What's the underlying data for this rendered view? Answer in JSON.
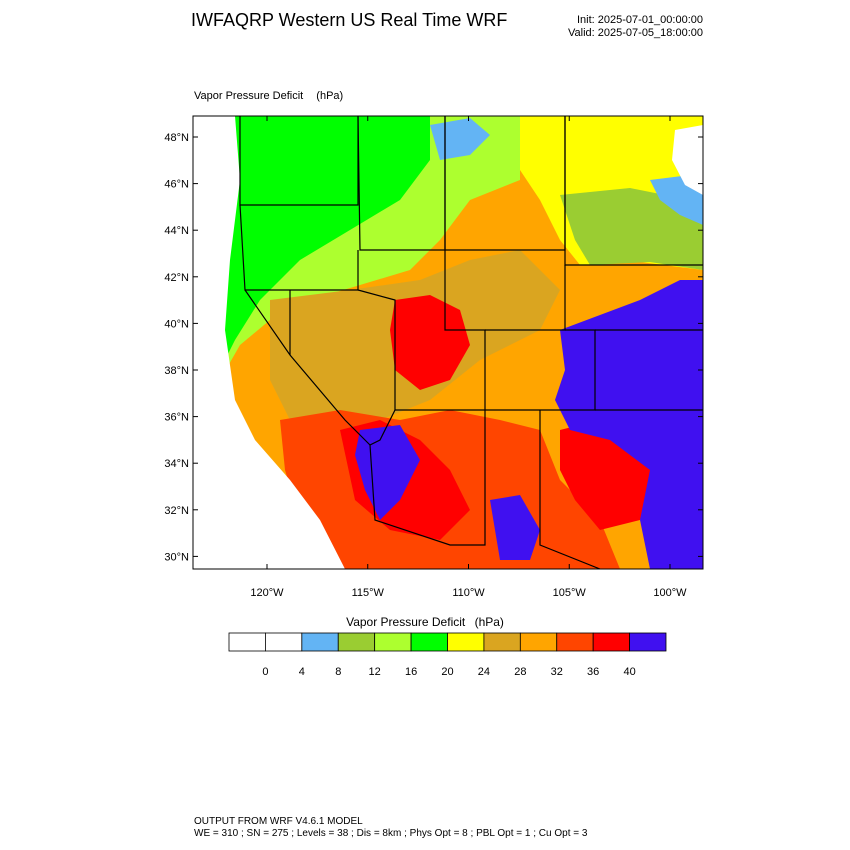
{
  "header": {
    "title": "IWFAQRP Western US Real Time WRF",
    "init": "Init: 2025-07-01_00:00:00",
    "valid": "Valid: 2025-07-05_18:00:00"
  },
  "field": {
    "name": "Vapor Pressure Deficit",
    "units": "(hPa)"
  },
  "axes": {
    "lat_labels": [
      "48°N",
      "46°N",
      "44°N",
      "42°N",
      "40°N",
      "38°N",
      "36°N",
      "34°N",
      "32°N",
      "30°N"
    ],
    "lat_values": [
      48,
      46,
      44,
      42,
      40,
      38,
      36,
      34,
      32,
      30
    ],
    "lon_labels": [
      "120°W",
      "115°W",
      "110°W",
      "105°W",
      "100°W"
    ],
    "lon_values": [
      -120,
      -115,
      -110,
      -105,
      -100
    ]
  },
  "colorbar": {
    "title": "Vapor Pressure Deficit",
    "units": "(hPa)",
    "levels": [
      "0",
      "4",
      "8",
      "12",
      "16",
      "20",
      "24",
      "28",
      "32",
      "36",
      "40"
    ],
    "colors": [
      "#ffffff",
      "#ffffff",
      "#63b4f4",
      "#9acd32",
      "#adff2f",
      "#00ff00",
      "#ffff00",
      "#daa520",
      "#ffa500",
      "#ff4500",
      "#ff0000",
      "#4010f0"
    ]
  },
  "map_regions": [
    {
      "name": "green-nw",
      "color": "#00ff00"
    },
    {
      "name": "lime-north",
      "color": "#adff2f"
    },
    {
      "name": "yellowgreen-dakota",
      "color": "#9acd32"
    },
    {
      "name": "yellow-north",
      "color": "#ffff00"
    },
    {
      "name": "goldenrod-basin",
      "color": "#daa520"
    },
    {
      "name": "orange-interior",
      "color": "#ffa500"
    },
    {
      "name": "orangered-southwest",
      "color": "#ff4500"
    },
    {
      "name": "red-hot",
      "color": "#ff0000"
    },
    {
      "name": "blue-plains",
      "color": "#4010f0"
    },
    {
      "name": "lightblue-snow",
      "color": "#63b4f4"
    }
  ],
  "footer": {
    "line1": "OUTPUT FROM WRF V4.6.1 MODEL",
    "line2": "WE = 310 ; SN = 275 ; Levels = 38 ; Dis = 8km ; Phys Opt = 8 ; PBL Opt = 1 ; Cu Opt = 3"
  }
}
